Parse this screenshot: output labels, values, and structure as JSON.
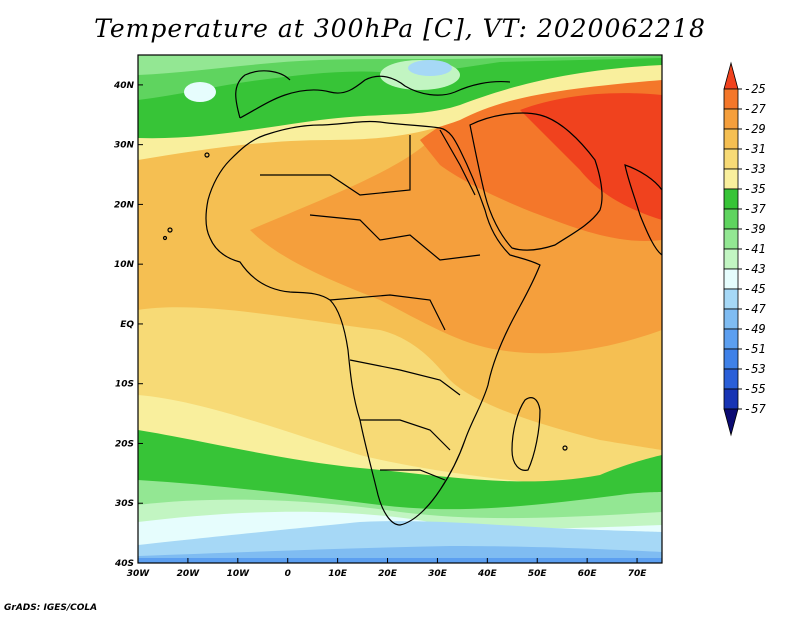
{
  "title": "Temperature at 300hPa [C], VT: 2020062218",
  "credit": "GrADS: IGES/COLA",
  "map": {
    "variable": "Temperature",
    "level": "300hPa",
    "units": "C",
    "valid_time": "2020062218",
    "lon_range": [
      -30,
      75
    ],
    "lat_range": [
      -40,
      45
    ],
    "lon_labels": [
      "30W",
      "20W",
      "10W",
      "0",
      "10E",
      "20E",
      "30E",
      "40E",
      "50E",
      "60E",
      "70E"
    ],
    "lat_labels": [
      "40S",
      "30S",
      "20S",
      "10S",
      "EQ",
      "10N",
      "20N",
      "30N",
      "40N"
    ]
  },
  "colorbar": {
    "labels": [
      "-25",
      "-27",
      "-29",
      "-31",
      "-33",
      "-35",
      "-37",
      "-39",
      "-41",
      "-43",
      "-45",
      "-47",
      "-49",
      "-51",
      "-53",
      "-55",
      "-57"
    ],
    "colors": [
      "#f0421e",
      "#f4772a",
      "#f59f3c",
      "#f5bf52",
      "#f7da76",
      "#f9ef9d",
      "#37c437",
      "#5fd45f",
      "#93e793",
      "#c2f5c2",
      "#e6fdfd",
      "#a6d8f6",
      "#7fbcf2",
      "#5c9ff0",
      "#3f81e8",
      "#2a5fd8",
      "#1734b4",
      "#0b0a72"
    ]
  }
}
